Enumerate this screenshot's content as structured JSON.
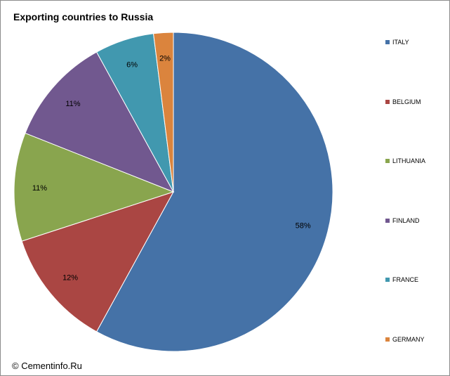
{
  "chart_data": {
    "type": "pie",
    "title": "Exporting countries to Russia",
    "source": "© Cementinfo.Ru",
    "slices": [
      {
        "label": "ITALY",
        "value": 58,
        "display": "58%",
        "color": "#4572a7"
      },
      {
        "label": "BELGIUM",
        "value": 12,
        "display": "12%",
        "color": "#aa4643"
      },
      {
        "label": "LITHUANIA",
        "value": 11,
        "display": "11%",
        "color": "#89a54e"
      },
      {
        "label": "FINLAND",
        "value": 11,
        "display": "11%",
        "color": "#71588f"
      },
      {
        "label": "FRANCE",
        "value": 6,
        "display": "6%",
        "color": "#4198af"
      },
      {
        "label": "GERMANY",
        "value": 2,
        "display": "2%",
        "color": "#db843d"
      }
    ],
    "legend_position": "right"
  }
}
